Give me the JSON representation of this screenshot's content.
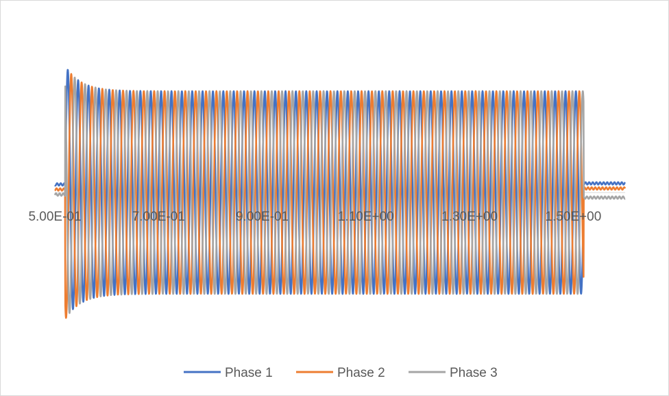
{
  "chart_data": {
    "type": "line",
    "title": "",
    "xlabel": "",
    "ylabel": "",
    "x_tick_labels": [
      "5.00E-01",
      "7.00E-01",
      "9.00E-01",
      "1.10E+00",
      "1.30E+00",
      "1.50E+00"
    ],
    "x_ticks": [
      0.5,
      0.7,
      0.9,
      1.1,
      1.3,
      1.5
    ],
    "xlim": [
      0.5,
      1.6
    ],
    "ylim": [
      -1.3,
      1.3
    ],
    "grid": false,
    "legend_position": "bottom",
    "waveform": {
      "frequency_hz": 50,
      "fault_start": 0.52,
      "fault_end": 1.52,
      "steady_amplitude": 1.0,
      "inrush_peak": 1.25,
      "pre_fault_levels": [
        0.08,
        0.03,
        -0.02
      ],
      "post_fault_levels": [
        0.09,
        0.04,
        -0.05
      ],
      "phase_shift_deg": [
        0,
        -120,
        120
      ]
    },
    "series": [
      {
        "name": "Phase 1",
        "color": "#4472C4"
      },
      {
        "name": "Phase 2",
        "color": "#ED7D31"
      },
      {
        "name": "Phase 3",
        "color": "#A5A5A5"
      }
    ]
  }
}
